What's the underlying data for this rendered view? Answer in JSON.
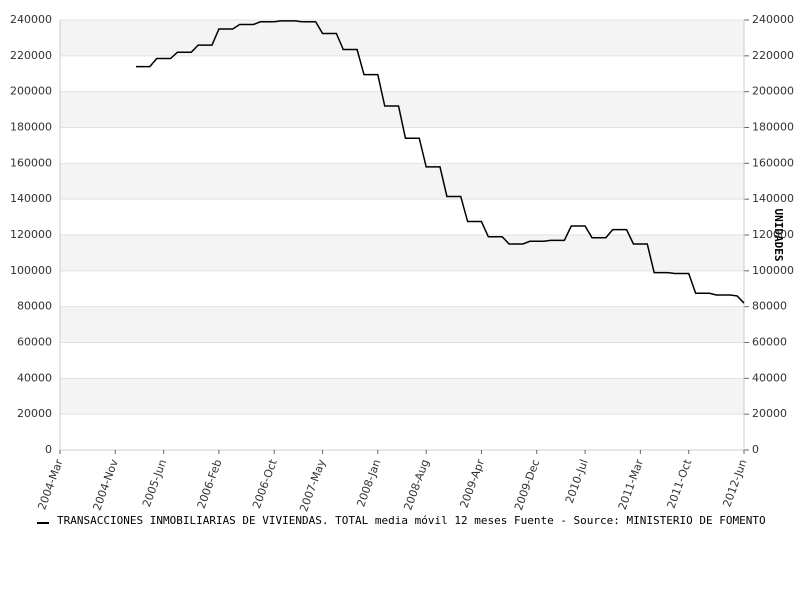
{
  "chart_data": {
    "type": "line",
    "categories": [
      "2004-Mar",
      null,
      null,
      null,
      null,
      null,
      null,
      null,
      "2004-Nov",
      null,
      null,
      null,
      null,
      null,
      null,
      "2005-Jun",
      null,
      null,
      null,
      null,
      null,
      null,
      null,
      "2006-Feb",
      null,
      null,
      null,
      null,
      null,
      null,
      null,
      "2006-Oct",
      null,
      null,
      null,
      null,
      null,
      null,
      "2007-May",
      null,
      null,
      null,
      null,
      null,
      null,
      null,
      "2008-Jan",
      null,
      null,
      null,
      null,
      null,
      null,
      "2008-Aug",
      null,
      null,
      null,
      null,
      null,
      null,
      null,
      "2009-Apr",
      null,
      null,
      null,
      null,
      null,
      null,
      null,
      "2009-Dec",
      null,
      null,
      null,
      null,
      null,
      null,
      "2010-Jul",
      null,
      null,
      null,
      null,
      null,
      null,
      null,
      "2011-Mar",
      null,
      null,
      null,
      null,
      null,
      null,
      "2011-Oct",
      null,
      null,
      null,
      null,
      null,
      null,
      null,
      "2012-Jun"
    ],
    "series": [
      {
        "name": "TRANSACCIONES INMOBILIARIAS DE VIVIENDAS. TOTAL media móvil 12 meses  Fuente - Source: MINISTERIO DE FOMENTO",
        "color": "#000000",
        "values": [
          null,
          null,
          null,
          null,
          null,
          null,
          null,
          null,
          null,
          null,
          null,
          214000,
          214000,
          214000,
          218500,
          218500,
          218500,
          222000,
          222000,
          222000,
          226000,
          226000,
          226000,
          235000,
          235000,
          235000,
          237500,
          237500,
          237500,
          239000,
          239000,
          239000,
          239500,
          239500,
          239500,
          239000,
          239000,
          239000,
          232500,
          232500,
          232500,
          223500,
          223500,
          223500,
          209500,
          209500,
          209500,
          192000,
          192000,
          192000,
          174000,
          174000,
          174000,
          158000,
          158000,
          158000,
          141500,
          141500,
          141500,
          127500,
          127500,
          127500,
          119000,
          119000,
          119000,
          115000,
          115000,
          115000,
          116500,
          116500,
          116500,
          117000,
          117000,
          117000,
          125000,
          125000,
          125000,
          118500,
          118500,
          118500,
          123000,
          123000,
          123000,
          115000,
          115000,
          115000,
          99000,
          99000,
          99000,
          98500,
          98500,
          98500,
          87500,
          87500,
          87500,
          86500,
          86500,
          86500,
          86000,
          82000
        ]
      }
    ],
    "ylim": [
      0,
      240000
    ],
    "yticks": [
      0,
      20000,
      40000,
      60000,
      80000,
      100000,
      120000,
      140000,
      160000,
      180000,
      200000,
      220000,
      240000
    ],
    "y2lim": [
      0,
      240000
    ],
    "y2ticks": [
      0,
      20000,
      40000,
      60000,
      80000,
      100000,
      120000,
      140000,
      160000,
      180000,
      200000,
      220000,
      240000
    ],
    "y2label": "UNIDADES",
    "grid": true
  }
}
